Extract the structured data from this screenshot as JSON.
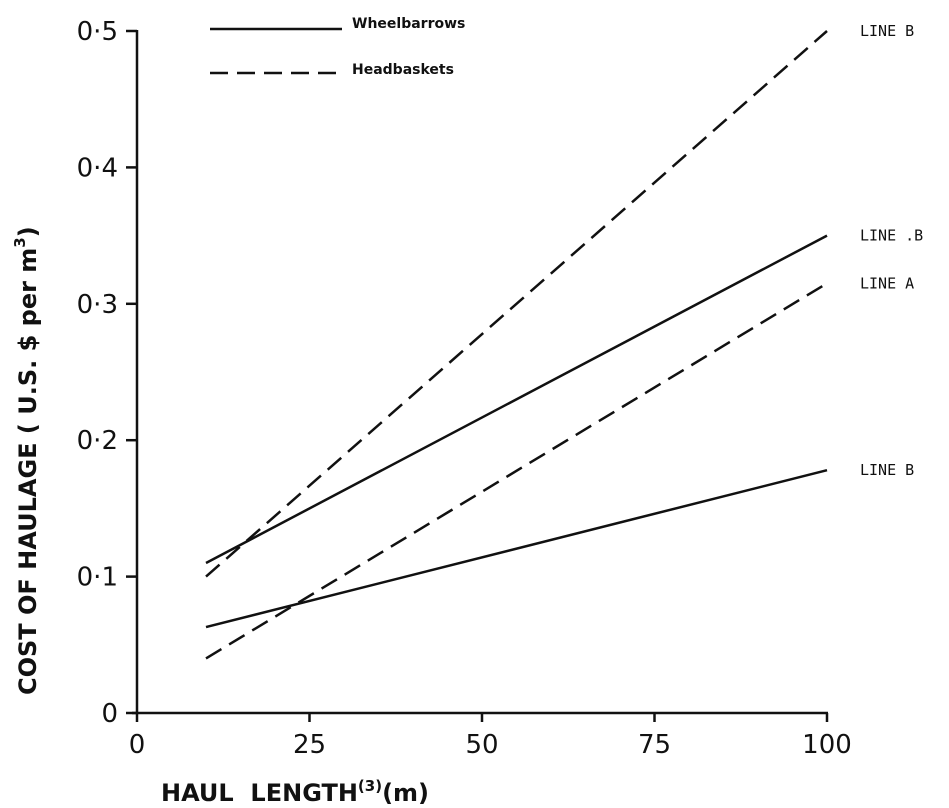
{
  "chart_data": {
    "type": "line",
    "xlabel": "HAUL  LENGTH",
    "xlabel_sup": "(3)",
    "xlabel_unit": "(m)",
    "ylabel": "COST OF HAULAGE ( U.S. $ per m",
    "ylabel_sup": "3",
    "ylabel_end": ")",
    "xlim": [
      0,
      100
    ],
    "ylim": [
      0,
      0.5
    ],
    "x_ticks": [
      0,
      25,
      50,
      75,
      100
    ],
    "x_tick_labels": [
      "0",
      "25",
      "50",
      "75",
      "100"
    ],
    "y_ticks": [
      0,
      0.1,
      0.2,
      0.3,
      0.4,
      0.5
    ],
    "y_tick_labels": [
      "0",
      "0·1",
      "0·2",
      "0·3",
      "0·4",
      "0·5"
    ],
    "grid": false,
    "legend": {
      "placement": "top-left",
      "entries": [
        {
          "label": "Wheelbarrows",
          "style": "solid"
        },
        {
          "label": "Headbaskets",
          "style": "dashed"
        }
      ]
    },
    "series": [
      {
        "style": "dashed",
        "end_label": "LINE  B",
        "x": [
          10,
          100
        ],
        "y": [
          0.1,
          0.5
        ]
      },
      {
        "style": "solid",
        "end_label": "LINE .B",
        "x": [
          10,
          100
        ],
        "y": [
          0.11,
          0.35
        ]
      },
      {
        "style": "dashed",
        "end_label": "LINE   A",
        "x": [
          10,
          100
        ],
        "y": [
          0.04,
          0.315
        ]
      },
      {
        "style": "solid",
        "end_label": "LINE  B",
        "x": [
          10,
          100
        ],
        "y": [
          0.063,
          0.178
        ]
      }
    ]
  }
}
